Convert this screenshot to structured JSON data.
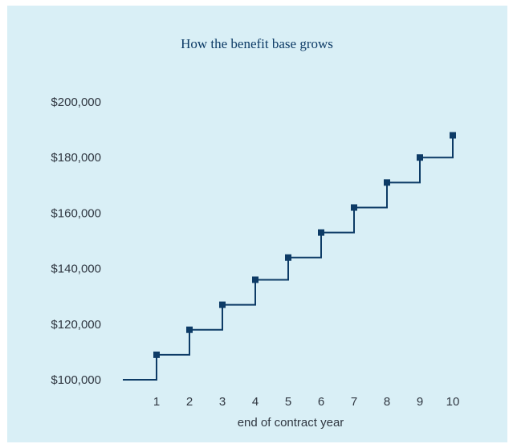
{
  "chart_data": {
    "type": "line",
    "step": true,
    "title": "How the benefit base grows",
    "xlabel": "end of contract year",
    "ylabel": "",
    "x": [
      1,
      2,
      3,
      4,
      5,
      6,
      7,
      8,
      9,
      10
    ],
    "xticks": [
      "1",
      "2",
      "3",
      "4",
      "5",
      "6",
      "7",
      "8",
      "9",
      "10"
    ],
    "ylim": [
      100000,
      200000
    ],
    "yticks": [
      "$100,000",
      "$120,000",
      "$140,000",
      "$160,000",
      "$180,000",
      "$200,000"
    ],
    "ytick_values": [
      100000,
      120000,
      140000,
      160000,
      180000,
      200000
    ],
    "start_value": 100000,
    "series": [
      {
        "values": [
          109000,
          118000,
          127000,
          136000,
          144000,
          153000,
          162000,
          171000,
          180000,
          188000
        ]
      }
    ],
    "line_color": "#0d3b66",
    "background_color": "#d9eff6",
    "grid": false,
    "legend": "none"
  }
}
